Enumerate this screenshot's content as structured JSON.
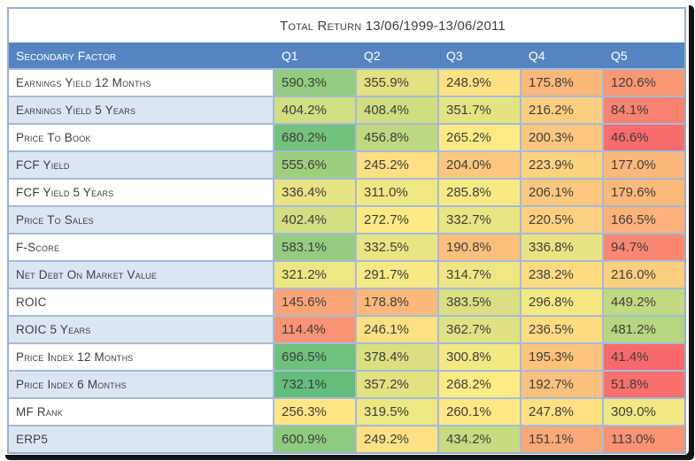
{
  "chart_data": {
    "type": "heatmap",
    "title": "Total Return 13/06/1999-13/06/2011",
    "columns": [
      "Secondary Factor",
      "Q1",
      "Q2",
      "Q3",
      "Q4",
      "Q5"
    ],
    "value_suffix": "%",
    "rows": [
      {
        "factor": "Earnings Yield 12 Months",
        "values": [
          590.3,
          355.9,
          248.9,
          175.8,
          120.6
        ]
      },
      {
        "factor": "Earnings Yield 5 Years",
        "values": [
          404.2,
          408.4,
          351.7,
          216.2,
          84.1
        ]
      },
      {
        "factor": "Price To Book",
        "values": [
          680.2,
          456.8,
          265.2,
          200.3,
          46.6
        ]
      },
      {
        "factor": "FCF Yield",
        "values": [
          555.6,
          245.2,
          204.0,
          223.9,
          177.0
        ]
      },
      {
        "factor": "FCF Yield 5 Years",
        "values": [
          336.4,
          311.0,
          285.8,
          206.1,
          179.6
        ]
      },
      {
        "factor": "Price To Sales",
        "values": [
          402.4,
          272.7,
          332.7,
          220.5,
          166.5
        ]
      },
      {
        "factor": "F-Score",
        "values": [
          583.1,
          332.5,
          190.8,
          336.8,
          94.7
        ]
      },
      {
        "factor": "Net Debt On Market Value",
        "values": [
          321.2,
          291.7,
          314.7,
          238.2,
          216.0
        ]
      },
      {
        "factor": "ROIC",
        "values": [
          145.6,
          178.8,
          383.5,
          296.8,
          449.2
        ]
      },
      {
        "factor": "ROIC 5 Years",
        "values": [
          114.4,
          246.1,
          362.7,
          236.5,
          481.2
        ]
      },
      {
        "factor": "Price Index 12 Months",
        "values": [
          696.5,
          378.4,
          300.8,
          195.3,
          41.4
        ]
      },
      {
        "factor": "Price Index 6 Months",
        "values": [
          732.1,
          357.2,
          268.2,
          192.7,
          51.8
        ]
      },
      {
        "factor": "MF Rank",
        "values": [
          256.3,
          319.5,
          260.1,
          247.8,
          309.0
        ]
      },
      {
        "factor": "ERP5",
        "values": [
          600.9,
          249.2,
          434.2,
          151.1,
          113.0
        ]
      }
    ],
    "colorscale": {
      "description": "3-color scale applied across all cells",
      "min": 41.4,
      "min_color": "#F8696B",
      "mid": 266.7,
      "mid_color": "#FFEB84",
      "max": 732.1,
      "max_color": "#63BE7B"
    },
    "legend_position": "none",
    "grid": true
  },
  "colors": {
    "header_bg": "#5585C1",
    "header_text": "#FFFFFF",
    "alt_row": "#DCE6F1",
    "grid": "#A3BBDB",
    "outer_border": "#96AECF",
    "title_text": "#3E3E3E",
    "cell_text": "#3E3E3E",
    "card_shadow": "#141414",
    "table_bg": "#FFFFFF"
  }
}
